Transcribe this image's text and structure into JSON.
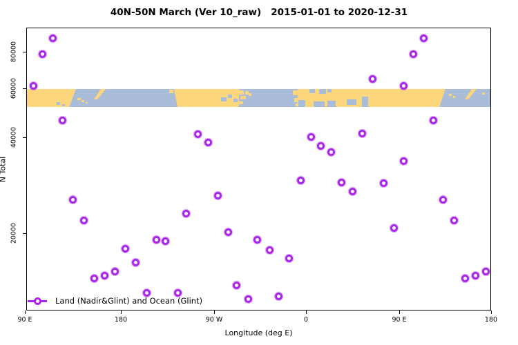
{
  "title": "40N-50N March (Ver 10_raw)   2015-01-01 to 2020-12-31",
  "axes": {
    "x_label": "Longitude (deg E)",
    "y_label": "N Total",
    "x_ticks": [
      {
        "deg": 0,
        "label": "90 E"
      },
      {
        "deg": 90,
        "label": "180"
      },
      {
        "deg": 180,
        "label": "90 W"
      },
      {
        "deg": 270,
        "label": "0"
      },
      {
        "deg": 360,
        "label": "90 E"
      },
      {
        "deg": 450,
        "label": "180"
      }
    ],
    "y_ticks": [
      {
        "value": 20000,
        "label": "20000"
      },
      {
        "value": 40000,
        "label": "40000"
      },
      {
        "value": 60000,
        "label": "60000"
      },
      {
        "value": 80000,
        "label": "80000"
      }
    ]
  },
  "legend": {
    "label": "Land (Nadir&Glint) and Ocean (Glint)"
  },
  "colors": {
    "point": "#a928e8",
    "land": "#fbd67d",
    "ocean": "#a9bcd8"
  },
  "chart_data": {
    "type": "scatter",
    "title": "40N-50N March (Ver 10_raw)   2015-01-01 to 2020-12-31",
    "xlabel": "Longitude (deg E)",
    "ylabel": "N Total",
    "x_axis_note": "degrees eastward from 90E along wrapped longitude axis (0-450)",
    "y_scale": "log",
    "ylim": [
      11000,
      95000
    ],
    "grid": false,
    "legend_position": "bottom-left",
    "map_band": {
      "description": "land/ocean strip between ~52000 and ~59000",
      "land_color": "#fbd67d",
      "ocean_color": "#a9bcd8"
    },
    "points": [
      {
        "lon": 8.2,
        "n": 61200
      },
      {
        "lon": 16.8,
        "n": 78300
      },
      {
        "lon": 25.9,
        "n": 89000
      },
      {
        "lon": 35.6,
        "n": 46100
      },
      {
        "lon": 44.7,
        "n": 25500
      },
      {
        "lon": 55.1,
        "n": 21900
      },
      {
        "lon": 64.8,
        "n": 14400
      },
      {
        "lon": 74.5,
        "n": 14700
      },
      {
        "lon": 84.2,
        "n": 15200
      },
      {
        "lon": 94.0,
        "n": 17900
      },
      {
        "lon": 104.0,
        "n": 16200
      },
      {
        "lon": 114.7,
        "n": 13000
      },
      {
        "lon": 124.0,
        "n": 19100
      },
      {
        "lon": 133.3,
        "n": 18900
      },
      {
        "lon": 144.7,
        "n": 13000
      },
      {
        "lon": 153.3,
        "n": 23100
      },
      {
        "lon": 164.0,
        "n": 41000
      },
      {
        "lon": 174.0,
        "n": 38600
      },
      {
        "lon": 183.4,
        "n": 26200
      },
      {
        "lon": 194.2,
        "n": 20200
      },
      {
        "lon": 202.3,
        "n": 13700
      },
      {
        "lon": 213.2,
        "n": 12400
      },
      {
        "lon": 222.6,
        "n": 19100
      },
      {
        "lon": 234.8,
        "n": 17700
      },
      {
        "lon": 243.6,
        "n": 12700
      },
      {
        "lon": 253.7,
        "n": 16700
      },
      {
        "lon": 264.6,
        "n": 29300
      },
      {
        "lon": 274.7,
        "n": 40200
      },
      {
        "lon": 284.0,
        "n": 37500
      },
      {
        "lon": 294.0,
        "n": 36000
      },
      {
        "lon": 304.0,
        "n": 28900
      },
      {
        "lon": 314.7,
        "n": 27000
      },
      {
        "lon": 324.0,
        "n": 41200
      },
      {
        "lon": 334.0,
        "n": 64400
      },
      {
        "lon": 344.7,
        "n": 28700
      },
      {
        "lon": 354.7,
        "n": 20800
      },
      {
        "lon": 364.7,
        "n": 61200
      },
      {
        "lon": 364.7,
        "n": 33600
      },
      {
        "lon": 374.2,
        "n": 78300
      },
      {
        "lon": 383.7,
        "n": 89000
      },
      {
        "lon": 393.2,
        "n": 46100
      },
      {
        "lon": 403.3,
        "n": 25500
      },
      {
        "lon": 414.1,
        "n": 21900
      },
      {
        "lon": 424.3,
        "n": 14400
      },
      {
        "lon": 435.1,
        "n": 14700
      },
      {
        "lon": 444.6,
        "n": 15200
      }
    ]
  }
}
